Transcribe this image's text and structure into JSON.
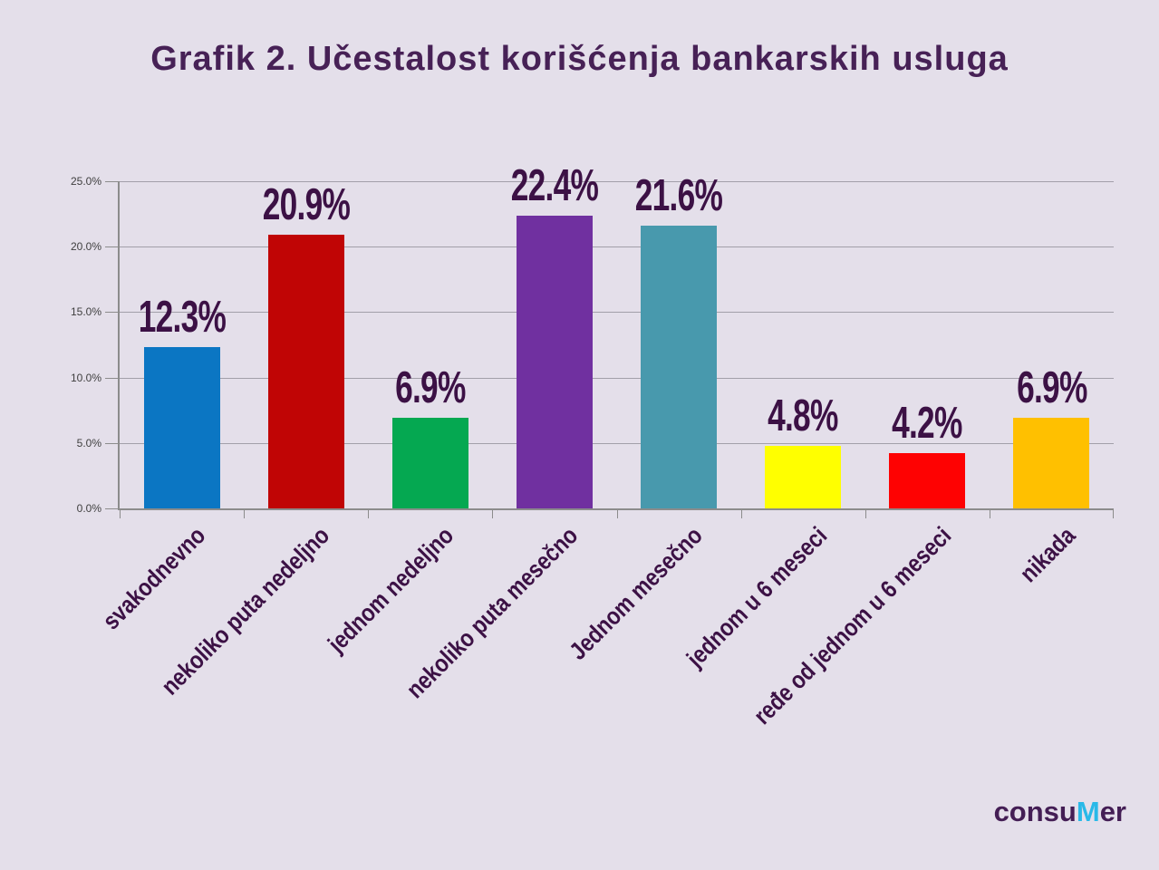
{
  "title": "Grafik 2. Učestalost korišćenja bankarskih usluga",
  "logo": {
    "prefix": "consu",
    "accent": "M",
    "suffix": "er",
    "text_color": "#441e55",
    "accent_color": "#29b9e8"
  },
  "chart_data": {
    "type": "bar",
    "title": "Grafik 2. Učestalost korišćenja bankarskih usluga",
    "categories": [
      "svakodnevno",
      "nekoliko puta nedeljno",
      "jednom nedeljno",
      "nekoliko puta mesečno",
      "Jednom mesečno",
      "jednom u 6 meseci",
      "ređe od jednom u 6 meseci",
      "nikada"
    ],
    "values": [
      12.3,
      20.9,
      6.9,
      22.4,
      21.6,
      4.8,
      4.2,
      6.9
    ],
    "data_labels": [
      "12.3%",
      "20.9%",
      "6.9%",
      "22.4%",
      "21.6%",
      "4.8%",
      "4.2%",
      "6.9%"
    ],
    "bar_colors": [
      "#0b76c3",
      "#c00505",
      "#05a851",
      "#7030a0",
      "#4899ad",
      "#ffff00",
      "#fe0202",
      "#ffc000"
    ],
    "yticks": [
      {
        "value": 0,
        "label": "0.0%"
      },
      {
        "value": 5,
        "label": "5.0%"
      },
      {
        "value": 10,
        "label": "10.0%"
      },
      {
        "value": 15,
        "label": "15.0%"
      },
      {
        "value": 20,
        "label": "20.0%"
      },
      {
        "value": 25,
        "label": "25.0%"
      }
    ],
    "xlabel": "",
    "ylabel": "",
    "ylim": [
      0,
      25
    ],
    "grid": true,
    "legend": false,
    "background_color": "#e4dfea",
    "label_color": "#3c1145",
    "title_color": "#472156"
  }
}
